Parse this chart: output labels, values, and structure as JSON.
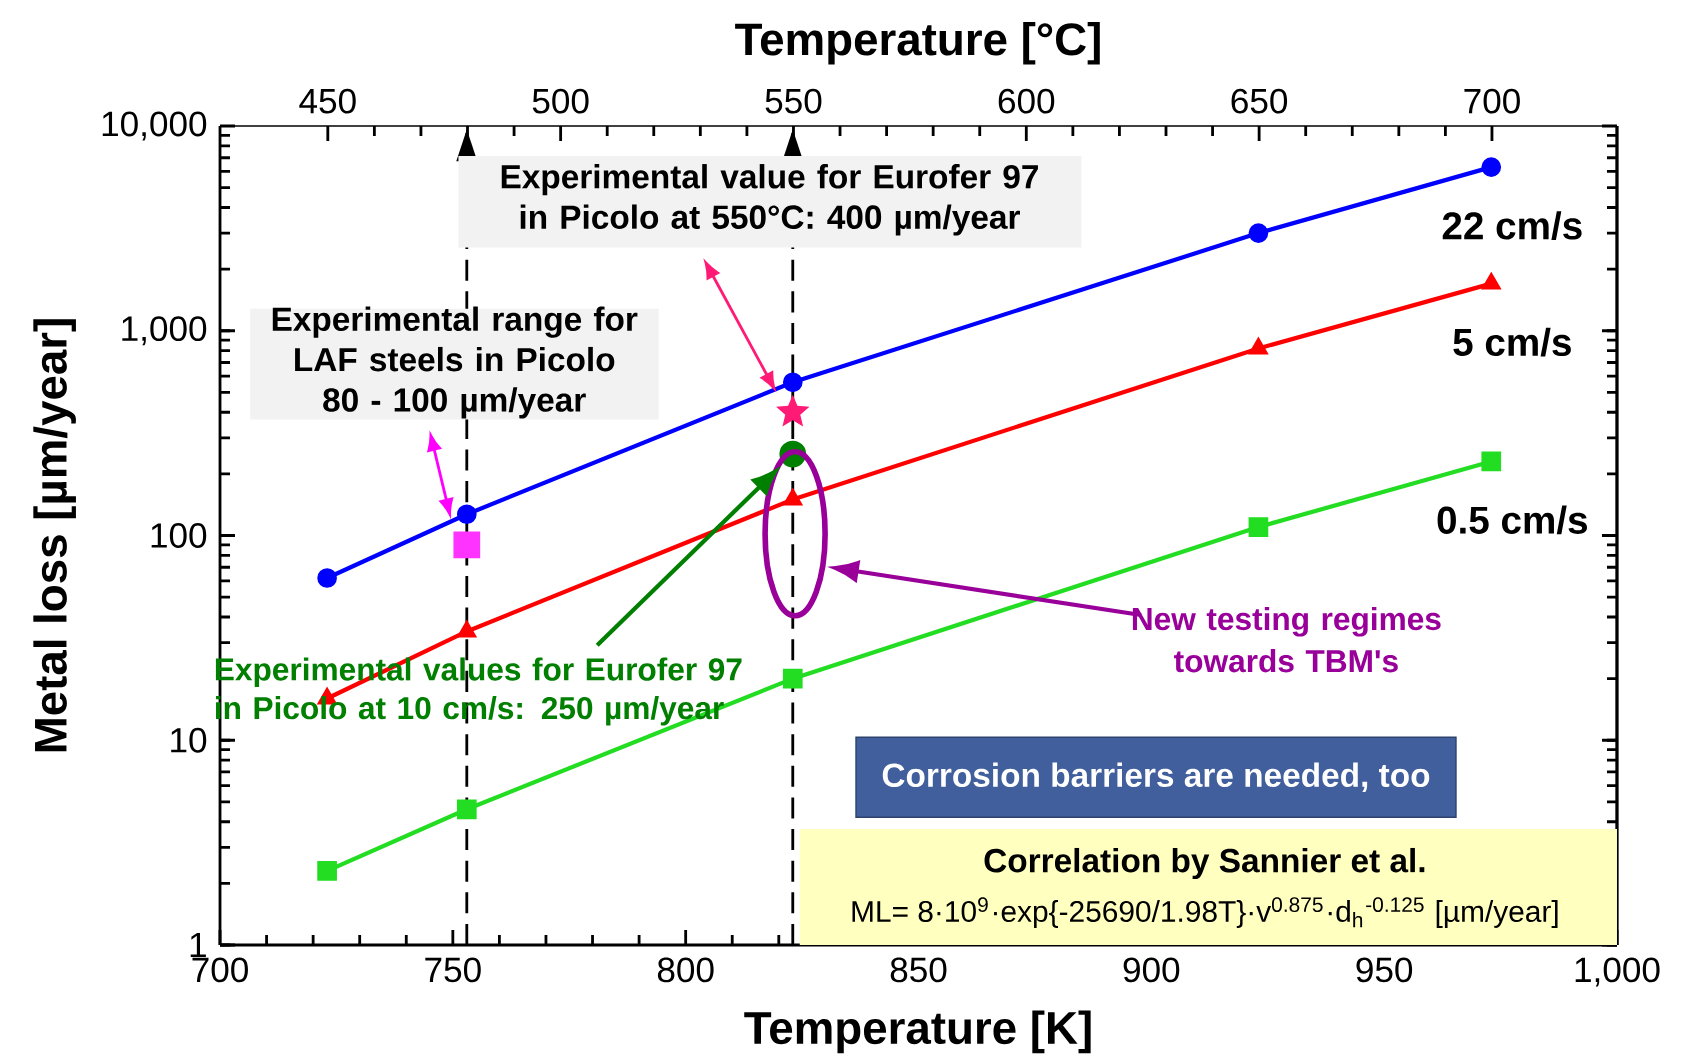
{
  "chart_data": {
    "type": "line",
    "xlabel": "Temperature [K]",
    "ylabel": "Metal loss [µm/year]",
    "x2label": "Temperature [°C]",
    "xlim": [
      700,
      1000
    ],
    "xticks": [
      700,
      750,
      800,
      850,
      900,
      950,
      {
        "value": 1000,
        "label": "1,000"
      }
    ],
    "x2lim": [
      426.85,
      726.85
    ],
    "x2ticks": [
      450,
      500,
      550,
      600,
      650,
      700
    ],
    "ylim": [
      1,
      10000
    ],
    "yticks": [
      1,
      10,
      100,
      {
        "value": 1000,
        "label": "1,000"
      },
      {
        "value": 10000,
        "label": "10,000"
      }
    ],
    "log": "y",
    "series": [
      {
        "name": "22 cm/s",
        "color": "#0000ff",
        "marker": "circle",
        "x": [
          723,
          753,
          823,
          923,
          973
        ],
        "values": [
          62,
          127,
          560,
          3000,
          6300
        ]
      },
      {
        "name": "5 cm/s",
        "color": "#ff0000",
        "marker": "triangle",
        "x": [
          723,
          753,
          823,
          923,
          973
        ],
        "values": [
          16,
          34,
          150,
          820,
          1700
        ]
      },
      {
        "name": "0.5 cm/s",
        "color": "#22dd22",
        "marker": "square",
        "x": [
          723,
          753,
          823,
          923,
          973
        ],
        "values": [
          2.3,
          4.6,
          20,
          110,
          230
        ]
      },
      {
        "type": "scatter",
        "color": "#ff33ff",
        "marker": "square",
        "x": [
          753
        ],
        "values": [
          90
        ]
      },
      {
        "type": "scatter",
        "color": "#ff1a75",
        "marker": "star",
        "x": [
          823
        ],
        "values": [
          400
        ]
      },
      {
        "type": "scatter",
        "color": "#008000",
        "marker": "circle",
        "x": [
          823
        ],
        "values": [
          250
        ]
      }
    ],
    "ref_lines": [
      {
        "axis": "x",
        "value": 753,
        "line_style": "dashed",
        "color": "#000000"
      },
      {
        "axis": "x",
        "value": 823,
        "line_style": "dashed",
        "color": "#000000"
      }
    ],
    "annotations": [
      "Experimental value for Eurofer 97 in Picolo at 550°C:  400 µm/year",
      "Experimental range for LAF steels in Picolo 80 - 100 µm/year",
      "Experimental values for Eurofer 97 in Picolo at 10 cm/s:  250   µm/year",
      "New testing regimes towards TBM's",
      "Corrosion barriers are needed, too",
      "Correlation by Sannier et al.",
      "ML= 8·10$^{9}$·exp{-25690/1.98T}·v$^{0.875}$·d$_{h}$$^{-0.125}$   [µm/year]"
    ]
  }
}
